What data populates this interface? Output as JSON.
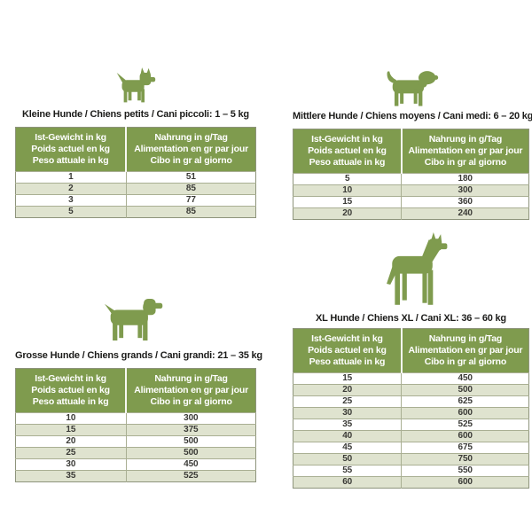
{
  "colors": {
    "accent_green": "#7f9b4e",
    "row_alt": "#dfe3cf",
    "row_white": "#ffffff",
    "table_border": "#8e947c",
    "inner_line": "#a9af93",
    "header_text": "#ffffff",
    "title_text": "#1c1c1a",
    "cell_text": "#3a3a36"
  },
  "column_headers": {
    "weight": [
      "Ist-Gewicht in kg",
      "Poids actuel en kg",
      "Peso attuale in kg"
    ],
    "food": [
      "Nahrung in g/Tag",
      "Alimentation en gr par jour",
      "Cibo in gr al giorno"
    ]
  },
  "tables": [
    {
      "id": "small",
      "dog_icon": "small-dog-icon",
      "title": "Kleine Hunde / Chiens petits / Cani piccoli: 1 – 5 kg",
      "rows": [
        [
          "1",
          "51"
        ],
        [
          "2",
          "85"
        ],
        [
          "3",
          "77"
        ],
        [
          "5",
          "85"
        ]
      ]
    },
    {
      "id": "medium",
      "dog_icon": "medium-dog-icon",
      "title": "Mittlere Hunde / Chiens moyens / Cani medi: 6 – 20 kg",
      "rows": [
        [
          "5",
          "180"
        ],
        [
          "10",
          "300"
        ],
        [
          "15",
          "360"
        ],
        [
          "20",
          "240"
        ]
      ]
    },
    {
      "id": "large",
      "dog_icon": "large-dog-icon",
      "title": "Grosse Hunde / Chiens grands / Cani grandi: 21 – 35 kg",
      "rows": [
        [
          "10",
          "300"
        ],
        [
          "15",
          "375"
        ],
        [
          "20",
          "500"
        ],
        [
          "25",
          "500"
        ],
        [
          "30",
          "450"
        ],
        [
          "35",
          "525"
        ]
      ]
    },
    {
      "id": "xl",
      "dog_icon": "xl-dog-icon",
      "title": "XL Hunde / Chiens XL / Cani XL: 36 – 60 kg",
      "rows": [
        [
          "15",
          "450"
        ],
        [
          "20",
          "500"
        ],
        [
          "25",
          "625"
        ],
        [
          "30",
          "600"
        ],
        [
          "35",
          "525"
        ],
        [
          "40",
          "600"
        ],
        [
          "45",
          "675"
        ],
        [
          "50",
          "750"
        ],
        [
          "55",
          "550"
        ],
        [
          "60",
          "600"
        ]
      ]
    }
  ]
}
